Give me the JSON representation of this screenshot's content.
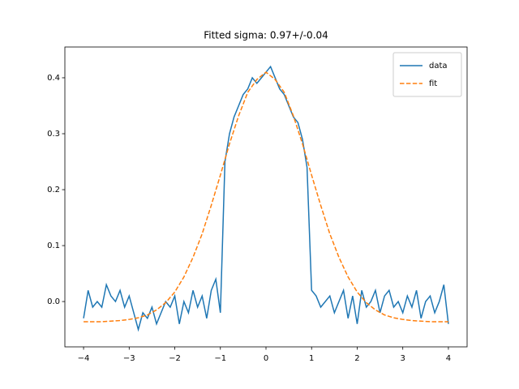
{
  "chart_data": {
    "type": "line",
    "title": "Fitted sigma: 0.97+/-0.04",
    "series": [
      {
        "name": "data",
        "color": "#1f77b4",
        "dash": false,
        "x": [
          -4.0,
          -3.9,
          -3.8,
          -3.7,
          -3.6,
          -3.5,
          -3.4,
          -3.3,
          -3.2,
          -3.1,
          -3.0,
          -2.9,
          -2.8,
          -2.7,
          -2.6,
          -2.5,
          -2.4,
          -2.3,
          -2.2,
          -2.1,
          -2.0,
          -1.9,
          -1.8,
          -1.7,
          -1.6,
          -1.5,
          -1.4,
          -1.3,
          -1.2,
          -1.1,
          -1.0,
          -0.9,
          -0.8,
          -0.7,
          -0.6,
          -0.5,
          -0.4,
          -0.3,
          -0.2,
          -0.1,
          0.0,
          0.1,
          0.2,
          0.3,
          0.4,
          0.5,
          0.6,
          0.7,
          0.8,
          0.9,
          1.0,
          1.1,
          1.2,
          1.3,
          1.4,
          1.5,
          1.6,
          1.7,
          1.8,
          1.9,
          2.0,
          2.1,
          2.2,
          2.3,
          2.4,
          2.5,
          2.6,
          2.7,
          2.8,
          2.9,
          3.0,
          3.1,
          3.2,
          3.3,
          3.4,
          3.5,
          3.6,
          3.7,
          3.8,
          3.9,
          4.0
        ],
        "values": [
          -0.03,
          0.02,
          -0.01,
          0.0,
          -0.01,
          0.03,
          0.01,
          0.0,
          0.02,
          -0.01,
          0.01,
          -0.02,
          -0.05,
          -0.02,
          -0.03,
          -0.01,
          -0.04,
          -0.02,
          0.0,
          -0.01,
          0.01,
          -0.04,
          0.0,
          -0.02,
          0.02,
          -0.01,
          0.01,
          -0.03,
          0.02,
          0.04,
          -0.02,
          0.25,
          0.3,
          0.33,
          0.35,
          0.37,
          0.38,
          0.4,
          0.39,
          0.4,
          0.41,
          0.42,
          0.4,
          0.38,
          0.37,
          0.35,
          0.33,
          0.32,
          0.29,
          0.24,
          0.02,
          0.01,
          -0.01,
          0.0,
          0.01,
          -0.02,
          0.0,
          0.02,
          -0.03,
          0.01,
          -0.04,
          0.02,
          -0.01,
          0.0,
          0.02,
          -0.02,
          0.01,
          0.02,
          -0.01,
          0.0,
          -0.02,
          0.01,
          -0.01,
          0.02,
          -0.03,
          0.0,
          0.01,
          -0.02,
          0.0,
          0.03,
          -0.04
        ]
      },
      {
        "name": "fit",
        "color": "#ff7f0e",
        "dash": true,
        "x": [
          -4.0,
          -3.8,
          -3.6,
          -3.4,
          -3.2,
          -3.0,
          -2.8,
          -2.6,
          -2.4,
          -2.2,
          -2.0,
          -1.8,
          -1.6,
          -1.4,
          -1.2,
          -1.0,
          -0.8,
          -0.6,
          -0.4,
          -0.2,
          0.0,
          0.2,
          0.4,
          0.6,
          0.8,
          1.0,
          1.2,
          1.4,
          1.6,
          1.8,
          2.0,
          2.2,
          2.4,
          2.6,
          2.8,
          3.0,
          3.2,
          3.4,
          3.6,
          3.8,
          4.0
        ],
        "values": [
          -0.036,
          -0.036,
          -0.036,
          -0.035,
          -0.034,
          -0.032,
          -0.029,
          -0.024,
          -0.015,
          -0.002,
          0.017,
          0.044,
          0.079,
          0.121,
          0.172,
          0.226,
          0.282,
          0.332,
          0.374,
          0.397,
          0.41,
          0.397,
          0.374,
          0.332,
          0.282,
          0.226,
          0.172,
          0.121,
          0.079,
          0.044,
          0.017,
          -0.002,
          -0.015,
          -0.024,
          -0.029,
          -0.032,
          -0.034,
          -0.035,
          -0.036,
          -0.036,
          -0.036
        ]
      }
    ],
    "xlim": [
      -4.41,
      4.41
    ],
    "xticks": [
      {
        "value": -4,
        "label": "−4"
      },
      {
        "value": -3,
        "label": "−3"
      },
      {
        "value": -2,
        "label": "−2"
      },
      {
        "value": -1,
        "label": "−1"
      },
      0,
      1,
      2,
      3,
      4
    ],
    "ylim": [
      -0.081,
      0.455
    ],
    "yticks": [
      {
        "value": 0,
        "label": "0.0"
      },
      0.1,
      0.2,
      0.3,
      0.4
    ],
    "legend": "upper right"
  }
}
